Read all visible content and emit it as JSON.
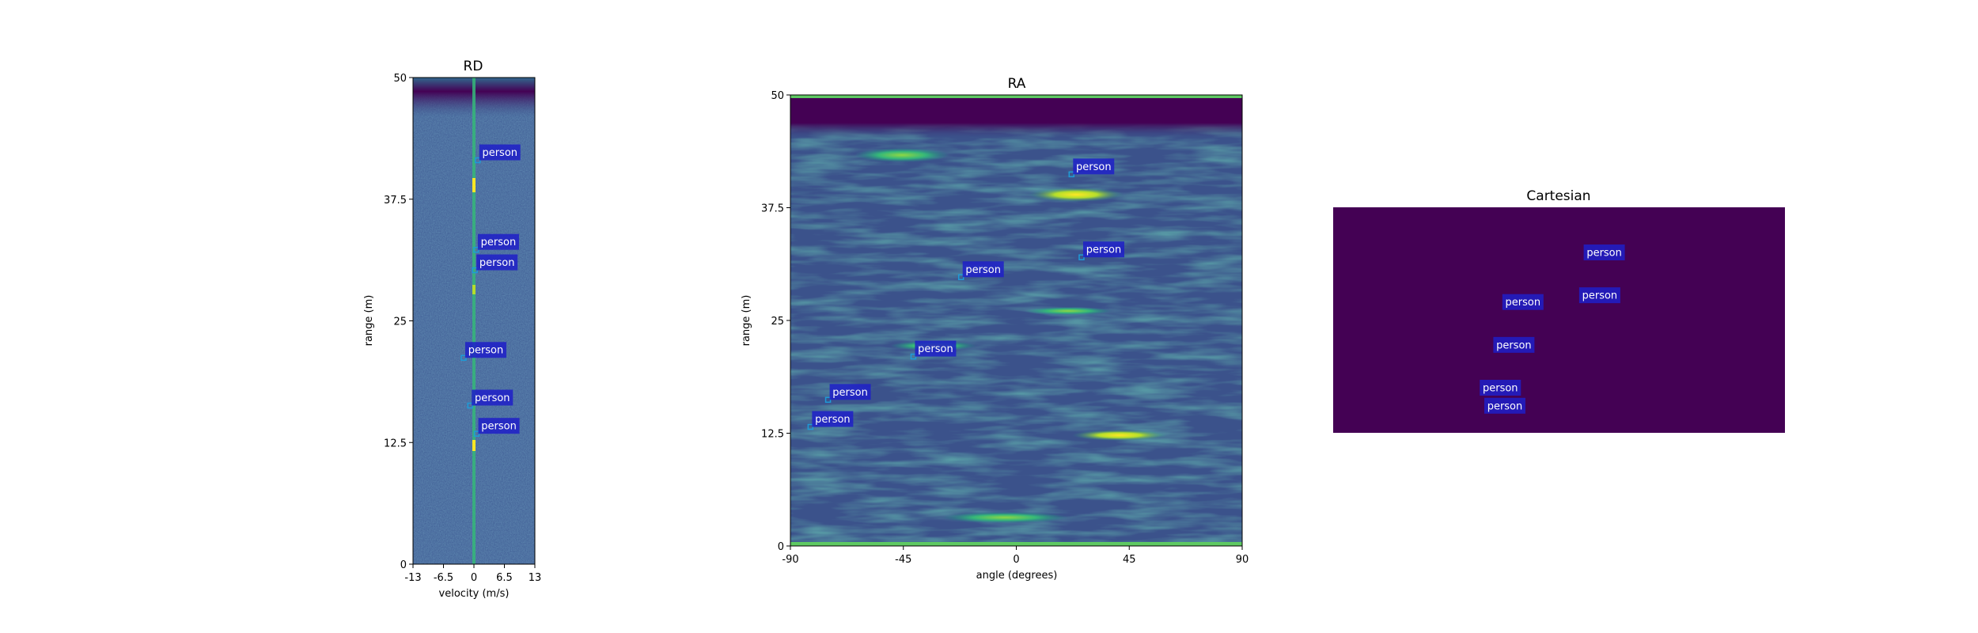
{
  "colors": {
    "heat_low": "#440154",
    "heat_mid": "#31688e",
    "heat_teal": "#21918c",
    "heat_green": "#35b779",
    "heat_high": "#fde725",
    "label_box": "#1f1fc8",
    "label_text": "#ffffff",
    "cartesian_bg": "#440154"
  },
  "chart_data": [
    {
      "type": "heatmap",
      "title": "RD",
      "xlabel": "velocity (m/s)",
      "ylabel": "range (m)",
      "xlim": [
        -13,
        13
      ],
      "ylim": [
        0,
        50
      ],
      "xticks": [
        "-13",
        "-6.5",
        "0",
        "6.5",
        "13"
      ],
      "xtick_values": [
        -13,
        -6.5,
        0,
        6.5,
        13
      ],
      "yticks": [
        "0",
        "12.5",
        "25",
        "37.5",
        "50"
      ],
      "ytick_values": [
        0,
        12.5,
        25,
        37.5,
        50
      ],
      "annotations": [
        {
          "text": "person",
          "x": 0.8,
          "y": 41.5
        },
        {
          "text": "person",
          "x": 0.5,
          "y": 32.3
        },
        {
          "text": "person",
          "x": 0.2,
          "y": 30.2
        },
        {
          "text": "person",
          "x": -2.2,
          "y": 21.2
        },
        {
          "text": "person",
          "x": -0.8,
          "y": 16.3
        },
        {
          "text": "person",
          "x": 0.6,
          "y": 13.4
        }
      ]
    },
    {
      "type": "heatmap",
      "title": "RA",
      "xlabel": "angle (degrees)",
      "ylabel": "range (m)",
      "xlim": [
        -90,
        90
      ],
      "ylim": [
        0,
        50
      ],
      "xticks": [
        "-90",
        "-45",
        "0",
        "45",
        "90"
      ],
      "xtick_values": [
        -90,
        -45,
        0,
        45,
        90
      ],
      "yticks": [
        "0",
        "12.5",
        "25",
        "37.5",
        "50"
      ],
      "ytick_values": [
        0,
        12.5,
        25,
        37.5,
        50
      ],
      "annotations": [
        {
          "text": "person",
          "x": 22,
          "y": 41.2
        },
        {
          "text": "person",
          "x": 26,
          "y": 32.0
        },
        {
          "text": "person",
          "x": -22,
          "y": 29.8
        },
        {
          "text": "person",
          "x": -41,
          "y": 21.0
        },
        {
          "text": "person",
          "x": -75,
          "y": 16.2
        },
        {
          "text": "person",
          "x": -82,
          "y": 13.2
        }
      ]
    },
    {
      "type": "scatter",
      "title": "Cartesian",
      "xlim": [
        0,
        1
      ],
      "ylim": [
        0,
        1
      ],
      "annotations": [
        {
          "text": "person",
          "x": 0.6,
          "y": 0.8
        },
        {
          "text": "person",
          "x": 0.59,
          "y": 0.61
        },
        {
          "text": "person",
          "x": 0.42,
          "y": 0.58
        },
        {
          "text": "person",
          "x": 0.4,
          "y": 0.39
        },
        {
          "text": "person",
          "x": 0.37,
          "y": 0.2
        },
        {
          "text": "person",
          "x": 0.38,
          "y": 0.12
        }
      ]
    }
  ]
}
